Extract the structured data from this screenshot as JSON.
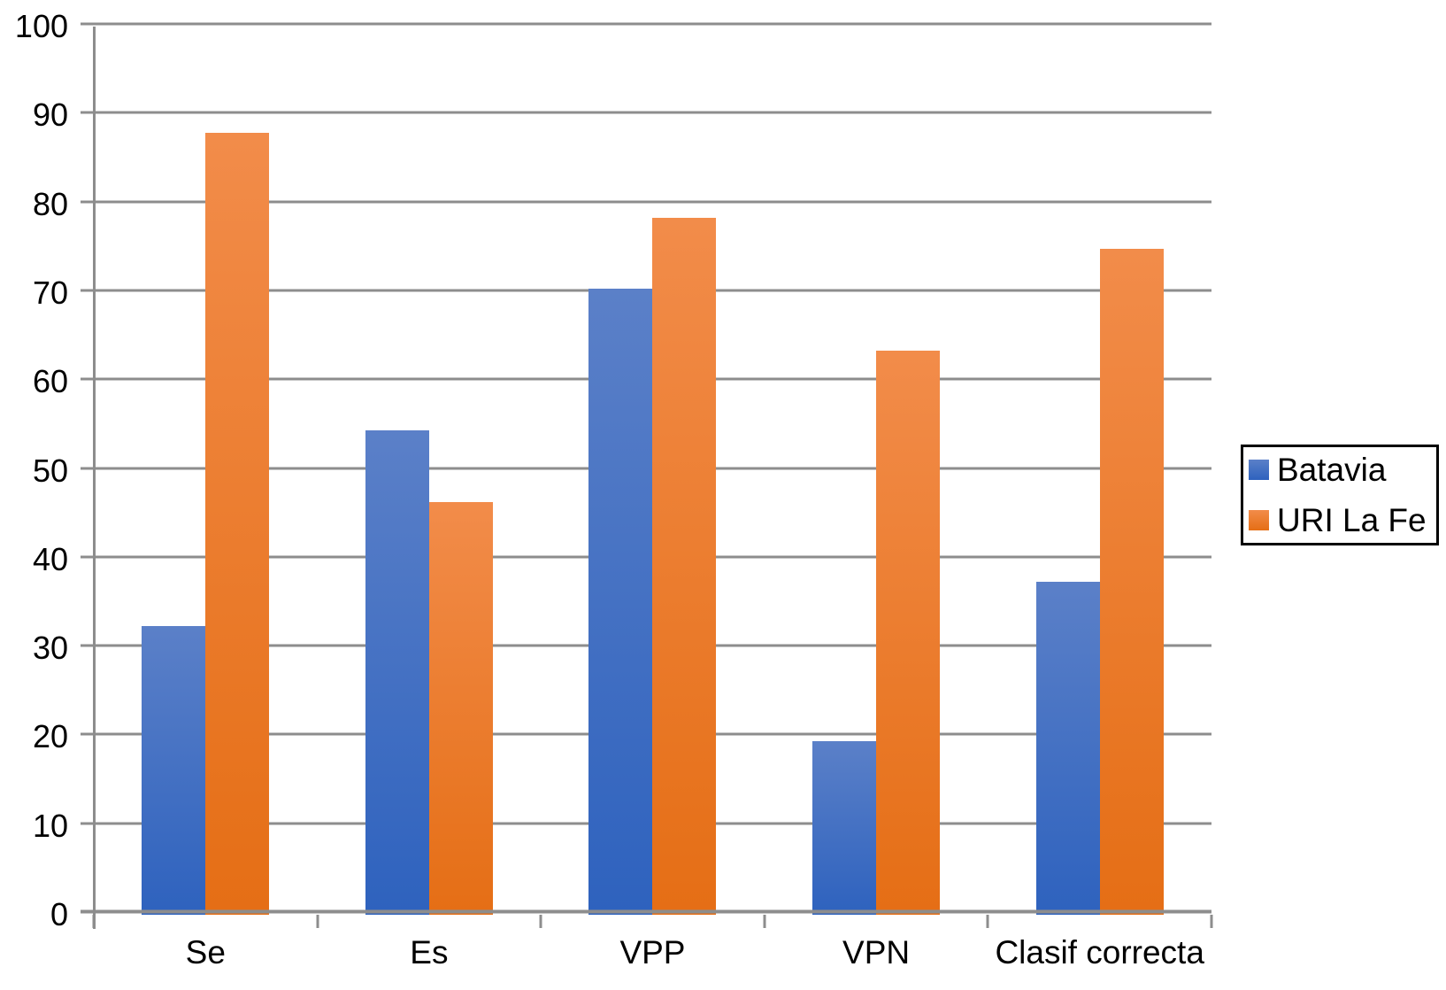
{
  "chart_data": {
    "type": "bar",
    "categories": [
      "Se",
      "Es",
      "VPP",
      "VPN",
      "Clasif correcta"
    ],
    "series": [
      {
        "name": "Batavia",
        "values": [
          32.5,
          54.5,
          70.5,
          19.5,
          37.5
        ],
        "color_top": "#5b80c8",
        "color_bottom": "#2e62be"
      },
      {
        "name": "URI La Fe",
        "values": [
          88,
          46.5,
          78.5,
          63.5,
          75
        ],
        "color_top": "#f28c4a",
        "color_bottom": "#e56e15"
      }
    ],
    "title": "",
    "xlabel": "",
    "ylabel": "",
    "ylim": [
      0,
      100
    ],
    "ytick_step": 10,
    "ytick_labels": [
      "0",
      "10",
      "20",
      "30",
      "40",
      "50",
      "60",
      "70",
      "80",
      "90",
      "100"
    ],
    "grid": true,
    "legend_position": "right"
  },
  "colors": {
    "background": "#ffffff",
    "gridline": "#8d8d8d",
    "axis": "#8d8d8d",
    "text": "#000000",
    "legend_border": "#000000"
  }
}
